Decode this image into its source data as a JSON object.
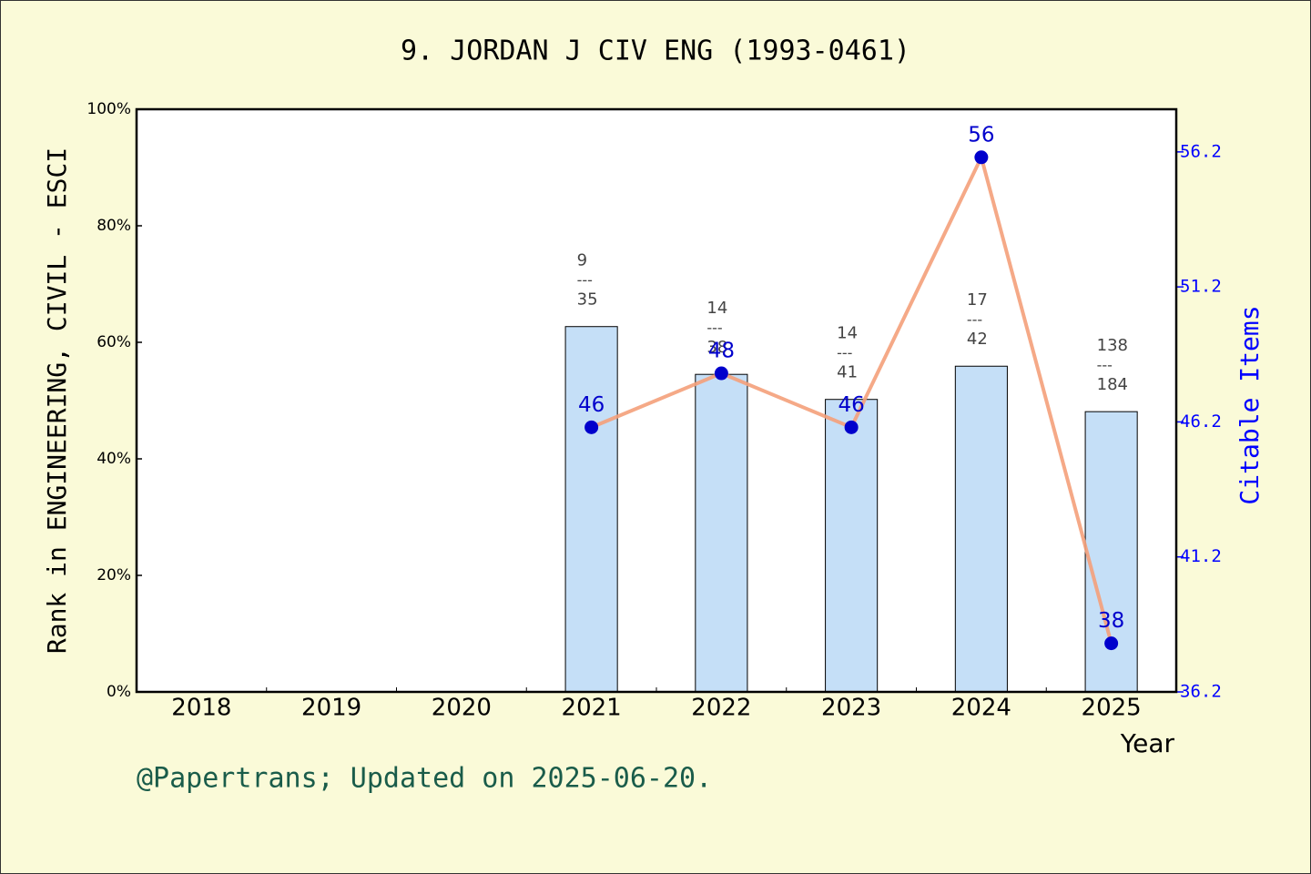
{
  "chart_data": {
    "type": "bar_line",
    "title": "9. JORDAN J CIV ENG (1993-0461)",
    "y_label": "Rank in ENGINEERING, CIVIL - ESCI",
    "y2_label": "Citable Items",
    "x_label": "Year",
    "footer": "@Papertrans; Updated on 2025-06-20.",
    "categories": [
      "2018",
      "2019",
      "2020",
      "2021",
      "2022",
      "2023",
      "2024",
      "2025"
    ],
    "ylim": [
      0,
      100
    ],
    "yticks": [
      {
        "value": 0,
        "label": "0%"
      },
      {
        "value": 20,
        "label": "20%"
      },
      {
        "value": 40,
        "label": "40%"
      },
      {
        "value": 60,
        "label": "60%"
      },
      {
        "value": 80,
        "label": "80%"
      },
      {
        "value": 100,
        "label": "100%"
      }
    ],
    "y2lim": [
      36.2,
      57.78
    ],
    "y2ticks": [
      36.2,
      41.2,
      46.2,
      51.2,
      56.2
    ],
    "separator": "---",
    "series": [
      {
        "type": "bar",
        "color": "#c5dff7",
        "values": [
          null,
          null,
          null,
          62.7,
          54.5,
          50.2,
          55.9,
          48.1
        ],
        "ranks": [
          null,
          null,
          null,
          9,
          14,
          14,
          17,
          138
        ],
        "totals": [
          null,
          null,
          null,
          35,
          38,
          41,
          42,
          184
        ]
      },
      {
        "type": "line",
        "axis": "y2",
        "color": "#f4a07a",
        "marker_color": "#0000cc",
        "values": [
          null,
          null,
          null,
          46,
          48,
          46,
          56,
          38
        ]
      }
    ]
  }
}
